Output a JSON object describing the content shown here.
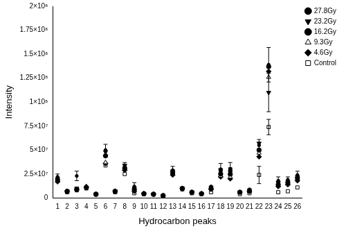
{
  "chart_data": {
    "type": "scatter",
    "x_label": "Hydrocarbon peaks",
    "y_label": "Intensity",
    "categories": [
      "1",
      "2",
      "3",
      "4",
      "5",
      "6",
      "7",
      "8",
      "9",
      "10",
      "11",
      "12",
      "13",
      "14",
      "15",
      "16",
      "17",
      "18",
      "19",
      "20",
      "21",
      "22",
      "23",
      "24",
      "25",
      "26"
    ],
    "ylim": [
      0,
      200000000
    ],
    "yticks": [
      0,
      {
        "value": 25000000,
        "label": "2.5×10⁷"
      },
      {
        "value": 50000000,
        "label": "5×10⁷"
      },
      {
        "value": 75000000,
        "label": "7.5×10⁷"
      },
      {
        "value": 100000000,
        "label": "1×10⁸"
      },
      {
        "value": 125000000,
        "label": "1.25×10⁸"
      },
      {
        "value": 150000000,
        "label": "1.5×10⁸"
      },
      {
        "value": 175000000,
        "label": "1.75×10⁸"
      },
      {
        "value": 200000000,
        "label": "2×10⁸"
      }
    ],
    "grid": false,
    "legend": "upper right",
    "series": [
      {
        "name": "27.8Gy",
        "color": "#000000",
        "marker": "circle-small",
        "values": [
          22000000,
          7000000,
          23000000,
          12000000,
          4000000,
          50000000,
          7000000,
          33000000,
          12000000,
          4500000,
          4000000,
          2500000,
          29000000,
          10000000,
          6000000,
          4500000,
          12000000,
          30000000,
          30000000,
          6000000,
          9000000,
          55000000,
          139000000,
          18000000,
          19000000,
          24000000
        ],
        "errors": [
          3000000,
          null,
          5000000,
          null,
          null,
          6000000,
          null,
          4000000,
          4000000,
          null,
          null,
          null,
          4000000,
          null,
          null,
          null,
          null,
          6000000,
          7000000,
          null,
          null,
          6000000,
          18000000,
          4000000,
          3000000,
          4000000
        ]
      },
      {
        "name": "23.2Gy",
        "color": "#000000",
        "marker": "triangle-down",
        "values": [
          20000000,
          7000000,
          10000000,
          11000000,
          4000000,
          48000000,
          7000000,
          34000000,
          10000000,
          4500000,
          4000000,
          2500000,
          28000000,
          10000000,
          6000000,
          4500000,
          11000000,
          29000000,
          27000000,
          6000000,
          8000000,
          57000000,
          110000000,
          16000000,
          17000000,
          22000000
        ],
        "errors": [
          null,
          null,
          null,
          null,
          null,
          null,
          null,
          null,
          null,
          null,
          null,
          null,
          null,
          null,
          null,
          null,
          null,
          null,
          null,
          null,
          null,
          null,
          20000000,
          null,
          null,
          null
        ]
      },
      {
        "name": "16.2Gy",
        "color": "#000000",
        "marker": "circle",
        "values": [
          19000000,
          7000000,
          9000000,
          11000000,
          4000000,
          44000000,
          7000000,
          31000000,
          9000000,
          4500000,
          4000000,
          2500000,
          27000000,
          10000000,
          6000000,
          4500000,
          10000000,
          25000000,
          25000000,
          6000000,
          7000000,
          50000000,
          137000000,
          14000000,
          16000000,
          21000000
        ]
      },
      {
        "name": "9.3Gy",
        "color": "#000000",
        "marker": "triangle-open",
        "values": [
          18000000,
          7000000,
          9000000,
          12000000,
          4000000,
          37000000,
          7000000,
          30000000,
          8000000,
          4500000,
          4000000,
          2500000,
          26000000,
          10000000,
          6000000,
          4500000,
          10000000,
          23000000,
          22000000,
          6000000,
          7000000,
          47000000,
          126000000,
          13000000,
          15000000,
          20000000
        ]
      },
      {
        "name": "4.6Gy",
        "color": "#000000",
        "marker": "diamond",
        "values": [
          17000000,
          7000000,
          9000000,
          11000000,
          4000000,
          36000000,
          7000000,
          29000000,
          7000000,
          4500000,
          4000000,
          2500000,
          24000000,
          10000000,
          6000000,
          4500000,
          9000000,
          22000000,
          20000000,
          6000000,
          7000000,
          43000000,
          132000000,
          12000000,
          14000000,
          18000000
        ]
      },
      {
        "name": "Control",
        "color": "#000000",
        "marker": "square-open",
        "values": [
          18000000,
          6000000,
          8000000,
          10000000,
          3500000,
          34000000,
          6000000,
          25000000,
          5000000,
          4000000,
          3500000,
          2000000,
          25000000,
          9000000,
          5000000,
          4000000,
          6000000,
          29000000,
          30000000,
          4000000,
          5000000,
          24000000,
          74000000,
          6000000,
          7000000,
          11000000
        ],
        "errors": [
          null,
          null,
          null,
          null,
          null,
          null,
          null,
          null,
          null,
          null,
          null,
          null,
          null,
          null,
          null,
          null,
          null,
          null,
          null,
          null,
          null,
          9000000,
          8000000,
          null,
          null,
          null
        ]
      }
    ]
  }
}
